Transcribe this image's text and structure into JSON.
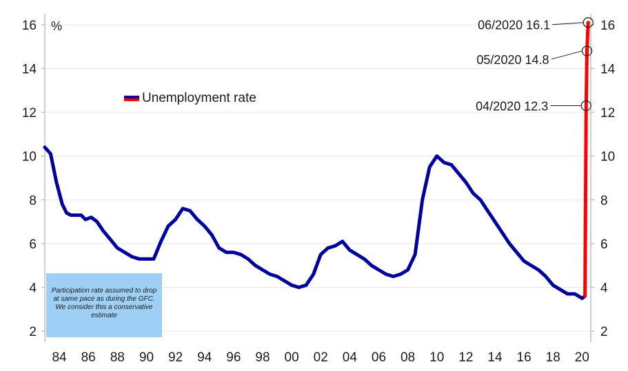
{
  "chart_data": {
    "type": "line",
    "title": "",
    "unit": "%",
    "xlim": [
      1983.0,
      2020.6
    ],
    "ylim": [
      1.5,
      16.5
    ],
    "y_ticks": [
      "2",
      "4",
      "6",
      "8",
      "10",
      "12",
      "14",
      "16"
    ],
    "x_ticks": [
      "84",
      "86",
      "88",
      "90",
      "92",
      "94",
      "96",
      "98",
      "00",
      "02",
      "04",
      "06",
      "08",
      "10",
      "12",
      "14",
      "16",
      "18",
      "20"
    ],
    "grid": "horizontal",
    "legend": {
      "label": "Unemployment rate",
      "placement": "upper-left"
    },
    "series": [
      {
        "name": "Unemployment rate",
        "color": "#00009c",
        "x": [
          1983.0,
          1983.4,
          1983.8,
          1984.2,
          1984.5,
          1984.8,
          1985.1,
          1985.5,
          1985.8,
          1986.2,
          1986.6,
          1987.0,
          1987.5,
          1988.0,
          1988.5,
          1989.0,
          1989.5,
          1990.0,
          1990.5,
          1991.0,
          1991.5,
          1992.0,
          1992.5,
          1993.0,
          1993.5,
          1994.0,
          1994.5,
          1995.0,
          1995.5,
          1996.0,
          1996.5,
          1997.0,
          1997.5,
          1998.0,
          1998.5,
          1999.0,
          1999.5,
          2000.0,
          2000.5,
          2001.0,
          2001.5,
          2002.0,
          2002.5,
          2003.0,
          2003.5,
          2004.0,
          2004.5,
          2005.0,
          2005.5,
          2006.0,
          2006.5,
          2007.0,
          2007.5,
          2008.0,
          2008.5,
          2009.0,
          2009.5,
          2010.0,
          2010.5,
          2011.0,
          2011.5,
          2012.0,
          2012.5,
          2013.0,
          2013.5,
          2014.0,
          2014.5,
          2015.0,
          2015.5,
          2016.0,
          2016.5,
          2017.0,
          2017.5,
          2018.0,
          2018.5,
          2019.0,
          2019.5,
          2020.0,
          2020.2
        ],
        "y": [
          10.4,
          10.1,
          8.8,
          7.8,
          7.4,
          7.3,
          7.3,
          7.3,
          7.1,
          7.2,
          7.0,
          6.6,
          6.2,
          5.8,
          5.6,
          5.4,
          5.3,
          5.3,
          5.3,
          6.1,
          6.8,
          7.1,
          7.6,
          7.5,
          7.1,
          6.8,
          6.4,
          5.8,
          5.6,
          5.6,
          5.5,
          5.3,
          5.0,
          4.8,
          4.6,
          4.5,
          4.3,
          4.1,
          4.0,
          4.1,
          4.6,
          5.5,
          5.8,
          5.9,
          6.1,
          5.7,
          5.5,
          5.3,
          5.0,
          4.8,
          4.6,
          4.5,
          4.6,
          4.8,
          5.5,
          8.0,
          9.5,
          10.0,
          9.7,
          9.6,
          9.2,
          8.8,
          8.3,
          8.0,
          7.5,
          7.0,
          6.5,
          6.0,
          5.6,
          5.2,
          5.0,
          4.8,
          4.5,
          4.1,
          3.9,
          3.7,
          3.7,
          3.5,
          3.6
        ]
      },
      {
        "name": "Unemployment rate",
        "color": "#ff0000",
        "x": [
          2020.2,
          2020.28,
          2020.34,
          2020.42
        ],
        "y": [
          3.6,
          12.3,
          14.8,
          16.1
        ]
      }
    ],
    "annotations": [
      {
        "text": "04/2020 12.3",
        "x": 2020.28,
        "y": 12.3
      },
      {
        "text": "05/2020 14.8",
        "x": 2020.34,
        "y": 14.8
      },
      {
        "text": "06/2020 16.1",
        "x": 2020.42,
        "y": 16.1
      }
    ],
    "note": "Participation rate assumed to drop at same pace as during the GFC. We consider this a conservative estimate",
    "note_color": "#9ecff5"
  }
}
